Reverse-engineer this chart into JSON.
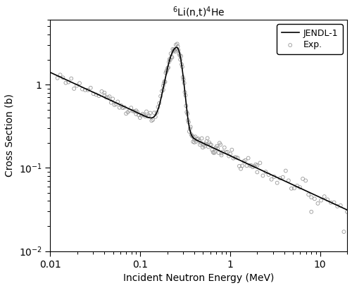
{
  "title": "$^{6}$Li(n,t)$^{4}$He",
  "xlabel": "Incident Neutron Energy (MeV)",
  "ylabel": "Cross Section (b)",
  "xlim": [
    0.01,
    20
  ],
  "ylim": [
    0.01,
    6
  ],
  "line_color": "black",
  "scatter_color": "gray",
  "legend_labels": [
    "JENDL-1",
    "Exp."
  ],
  "line_width": 1.2,
  "marker_size": 3.5,
  "background_color": "white"
}
